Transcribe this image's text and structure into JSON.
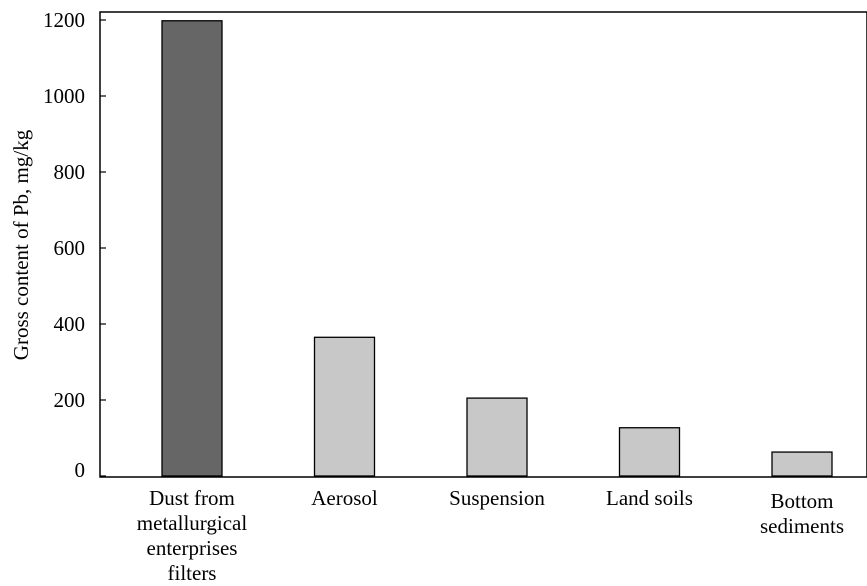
{
  "chart_data": {
    "type": "bar",
    "title": "",
    "xlabel": "",
    "ylabel": "Gross content of  Pb, mg/kg",
    "ylim": [
      0,
      1200
    ],
    "yticks": [
      0,
      200,
      400,
      600,
      800,
      1000,
      1200
    ],
    "grid": false,
    "categories": [
      [
        "Dust from",
        "metallurgical",
        "enterprises",
        "filters"
      ],
      [
        "Aerosol"
      ],
      [
        "Suspension"
      ],
      [
        "Land soils"
      ],
      [
        "Bottom",
        "sediments"
      ]
    ],
    "values": [
      1198,
      365,
      205,
      127,
      63
    ],
    "colors": [
      "#666666",
      "#c8c8c8",
      "#c8c8c8",
      "#c8c8c8",
      "#c8c8c8"
    ]
  }
}
